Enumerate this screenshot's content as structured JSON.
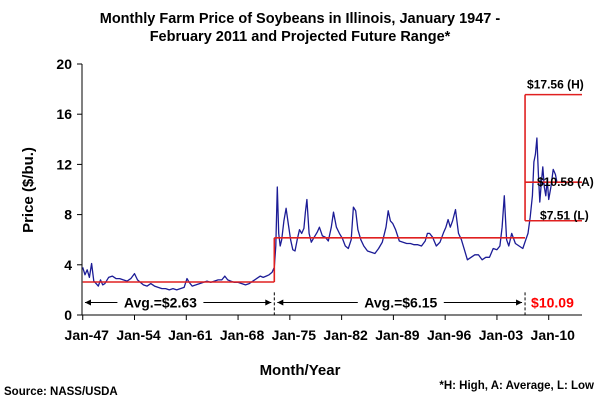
{
  "chart_data": {
    "type": "line",
    "title_line1": "Monthly Farm Price of Soybeans in Illinois, January 1947 -",
    "title_line2": "February 2011 and Projected Future Range*",
    "xlabel": "Month/Year",
    "ylabel": "Price ($/bu.)",
    "ylim": [
      0,
      20
    ],
    "xlim": [
      1946.9,
      2014.5
    ],
    "yticks": [
      0,
      4,
      8,
      12,
      16,
      20
    ],
    "xticks": [
      {
        "label": "Jan-47",
        "x": 1947
      },
      {
        "label": "Jan-54",
        "x": 1954
      },
      {
        "label": "Jan-61",
        "x": 1961
      },
      {
        "label": "Jan-68",
        "x": 1968
      },
      {
        "label": "Jan-75",
        "x": 1975
      },
      {
        "label": "Jan-82",
        "x": 1982
      },
      {
        "label": "Jan-89",
        "x": 1989
      },
      {
        "label": "Jan-96",
        "x": 1996
      },
      {
        "label": "Jan-03",
        "x": 2003
      },
      {
        "label": "Jan-10",
        "x": 2010
      }
    ],
    "grid": false,
    "series": [
      {
        "color": "#1c1c96",
        "x": [
          1947,
          1947.3,
          1947.6,
          1947.9,
          1948.2,
          1948.5,
          1948.8,
          1949.1,
          1949.4,
          1949.7,
          1950,
          1950.5,
          1951,
          1951.5,
          1952,
          1952.5,
          1953,
          1953.5,
          1954,
          1954.4,
          1954.8,
          1955.2,
          1955.7,
          1956.2,
          1956.7,
          1957.2,
          1957.7,
          1958.2,
          1958.7,
          1959.2,
          1959.7,
          1960.2,
          1960.7,
          1961.1,
          1961.4,
          1961.8,
          1962.3,
          1962.8,
          1963.3,
          1963.8,
          1964.3,
          1964.8,
          1965.3,
          1965.8,
          1966.2,
          1966.6,
          1967,
          1967.5,
          1968,
          1968.5,
          1969,
          1969.5,
          1970,
          1970.5,
          1971,
          1971.4,
          1971.8,
          1972.2,
          1972.6,
          1972.9,
          1973.1,
          1973.3,
          1973.5,
          1973.7,
          1973.9,
          1974.2,
          1974.5,
          1974.8,
          1975.1,
          1975.4,
          1975.7,
          1976,
          1976.3,
          1976.6,
          1976.9,
          1977.1,
          1977.3,
          1977.6,
          1977.9,
          1978.3,
          1978.7,
          1979,
          1979.4,
          1979.8,
          1980.2,
          1980.6,
          1980.9,
          1981.3,
          1981.7,
          1982.1,
          1982.5,
          1982.9,
          1983.3,
          1983.6,
          1983.9,
          1984.2,
          1984.6,
          1985,
          1985.5,
          1986,
          1986.5,
          1987,
          1987.5,
          1988,
          1988.3,
          1988.6,
          1988.9,
          1989.3,
          1989.8,
          1990.3,
          1990.8,
          1991.3,
          1991.8,
          1992.3,
          1992.8,
          1993.3,
          1993.6,
          1993.9,
          1994.3,
          1994.8,
          1995.3,
          1995.8,
          1996.1,
          1996.4,
          1996.7,
          1997,
          1997.4,
          1997.8,
          1998.2,
          1998.6,
          1999,
          1999.5,
          2000,
          2000.5,
          2001,
          2001.5,
          2002,
          2002.5,
          2003,
          2003.4,
          2003.7,
          2004,
          2004.3,
          2004.6,
          2005,
          2005.5,
          2006,
          2006.5,
          2006.9,
          2007.2,
          2007.5,
          2007.8,
          2008,
          2008.2,
          2008.4,
          2008.6,
          2008.8,
          2009,
          2009.2,
          2009.4,
          2009.6,
          2009.8,
          2010,
          2010.3,
          2010.6,
          2010.9,
          2011.1
        ],
        "y": [
          3.8,
          3.2,
          3.6,
          3.0,
          4.1,
          2.7,
          2.5,
          2.3,
          2.8,
          2.4,
          2.5,
          3.0,
          3.1,
          2.9,
          2.9,
          2.8,
          2.7,
          2.9,
          3.3,
          2.8,
          2.6,
          2.4,
          2.3,
          2.5,
          2.3,
          2.2,
          2.1,
          2.1,
          2.0,
          2.1,
          2.0,
          2.1,
          2.2,
          2.9,
          2.6,
          2.3,
          2.4,
          2.5,
          2.6,
          2.7,
          2.6,
          2.7,
          2.8,
          2.8,
          3.1,
          2.8,
          2.7,
          2.6,
          2.6,
          2.5,
          2.4,
          2.5,
          2.7,
          2.9,
          3.1,
          3.0,
          3.1,
          3.2,
          3.4,
          3.8,
          5.5,
          10.2,
          6.5,
          5.5,
          6.0,
          7.5,
          8.5,
          7.2,
          6.0,
          5.2,
          5.1,
          6.0,
          6.8,
          6.5,
          6.9,
          8.2,
          9.2,
          6.5,
          5.8,
          6.2,
          6.6,
          7.0,
          6.3,
          6.2,
          5.9,
          7.0,
          8.2,
          7.0,
          6.5,
          6.1,
          5.5,
          5.3,
          6.0,
          8.6,
          8.3,
          6.8,
          6.0,
          5.5,
          5.1,
          5.0,
          4.9,
          5.3,
          5.8,
          7.0,
          8.3,
          7.5,
          7.3,
          6.8,
          5.9,
          5.8,
          5.7,
          5.7,
          5.6,
          5.6,
          5.5,
          5.9,
          6.5,
          6.5,
          6.2,
          5.5,
          5.8,
          6.6,
          7.0,
          7.6,
          7.0,
          7.5,
          8.4,
          6.5,
          6.0,
          5.2,
          4.4,
          4.6,
          4.8,
          4.8,
          4.4,
          4.6,
          4.6,
          5.3,
          5.2,
          5.5,
          7.0,
          9.5,
          6.0,
          5.5,
          6.5,
          5.7,
          5.5,
          5.3,
          6.0,
          6.5,
          7.8,
          9.5,
          12.2,
          12.8,
          14.1,
          11.2,
          9.0,
          10.5,
          11.8,
          10.2,
          9.5,
          10.8,
          9.2,
          10.2,
          11.6,
          11.2,
          10.6
        ]
      }
    ],
    "reference_lines": {
      "avg1_value": 2.63,
      "avg1_range": [
        1947,
        1972.9
      ],
      "avg2_value": 6.15,
      "avg2_range": [
        1972.9,
        2006.8
      ],
      "proj_start": 2006.8,
      "high_value": 17.56,
      "average_value": 10.58,
      "low_value": 7.51,
      "line_color": "#e02020"
    },
    "annotations": {
      "avg1_label": "Avg.=$2.63",
      "avg2_label": "Avg.=$6.15",
      "high_label": "$17.56 (H)",
      "avg_label": "$10.58 (A)",
      "low_label": "$7.51 (L)",
      "current_label": "$10.09",
      "current_color": "#ff0000"
    }
  },
  "source": "Source: NASS/USDA",
  "footnote": "*H: High, A: Average, L: Low"
}
